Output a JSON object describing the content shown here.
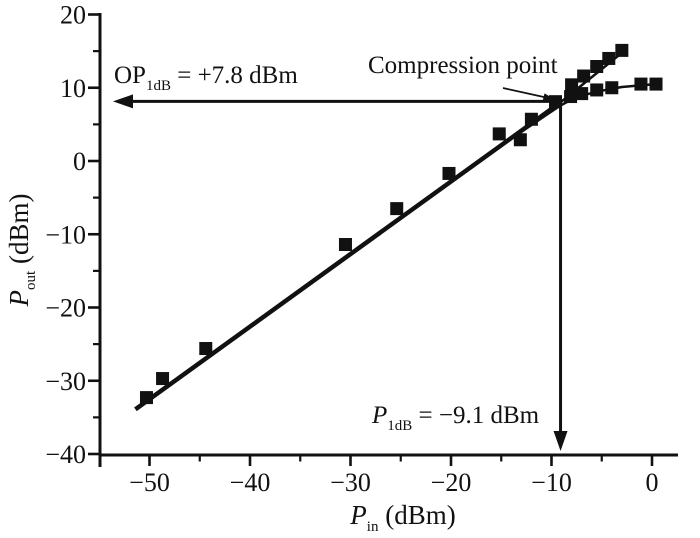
{
  "figure": {
    "background": "#ffffff",
    "ink": "#111111"
  },
  "chart_data": {
    "type": "scatter",
    "title": "",
    "xlabel": "P_in (dBm)",
    "ylabel": "P_out (dBm)",
    "xlabel_parts": {
      "prefix": "P",
      "sub": "in",
      "rest": " (dBm)"
    },
    "ylabel_parts": {
      "prefix": "P",
      "sub": "out",
      "rest": " (dBm)"
    },
    "xlim": [
      -55,
      2.6
    ],
    "ylim": [
      -40,
      20
    ],
    "x_major_ticks": [
      -50,
      -40,
      -30,
      -20,
      -10,
      0
    ],
    "x_minor_ticks": [
      -45,
      -35,
      -25,
      -15,
      -5
    ],
    "y_major_ticks": [
      20,
      10,
      0,
      -10,
      -20,
      -30,
      -40
    ],
    "y_minor_ticks": [
      15,
      5,
      -5,
      -15,
      -25,
      -35
    ],
    "grid": false,
    "legend": "none",
    "series": [
      {
        "name": "measured-output",
        "marker": "square",
        "marker_size": 13,
        "points": [
          [
            -50.3,
            -32.3
          ],
          [
            -48.7,
            -29.7
          ],
          [
            -44.4,
            -25.6
          ],
          [
            -30.5,
            -11.4
          ],
          [
            -25.4,
            -6.5
          ],
          [
            -20.2,
            -1.7
          ],
          [
            -15.2,
            3.7
          ],
          [
            -13.1,
            2.9
          ],
          [
            -12.0,
            5.7
          ],
          [
            -9.6,
            8.1
          ],
          [
            -8.1,
            8.8
          ],
          [
            -7.0,
            9.2
          ],
          [
            -5.5,
            9.7
          ],
          [
            -4.0,
            10.0
          ],
          [
            -1.1,
            10.5
          ],
          [
            0.4,
            10.5
          ]
        ]
      },
      {
        "name": "linear-response",
        "marker": "square",
        "marker_size": 13,
        "points": [
          [
            -8.0,
            10.4
          ],
          [
            -6.8,
            11.6
          ],
          [
            -5.5,
            12.9
          ],
          [
            -4.3,
            14.0
          ],
          [
            -3.0,
            15.1
          ]
        ]
      }
    ],
    "lines": [
      {
        "name": "gain-line-main",
        "width": 4.5,
        "points": [
          [
            -51.4,
            -33.9
          ],
          [
            -9.2,
            7.9
          ]
        ]
      },
      {
        "name": "gain-line-extension",
        "width": 2.5,
        "points": [
          [
            -9.2,
            7.9
          ],
          [
            -2.6,
            15.2
          ]
        ]
      },
      {
        "name": "compressed-curve",
        "width": 2.5,
        "points": [
          [
            -16.5,
            0.7
          ],
          [
            -14,
            3.1
          ],
          [
            -12,
            4.9
          ],
          [
            -10.5,
            6.3
          ],
          [
            -9.2,
            7.5
          ],
          [
            -8,
            8.4
          ],
          [
            -6.5,
            9.1
          ],
          [
            -5,
            9.6
          ],
          [
            -3,
            10.1
          ],
          [
            -0.5,
            10.4
          ],
          [
            0.9,
            10.6
          ]
        ]
      }
    ],
    "annotations": {
      "op1db": {
        "prefix": "OP",
        "sub": "1dB",
        "rest": " = +7.8 dBm",
        "value": 7.8
      },
      "p1db": {
        "prefix": "P",
        "sub": "1dB",
        "rest": " = −9.1 dBm",
        "value": -9.1
      },
      "pointer_label": "Compression point",
      "compression_point": [
        -9.2,
        8.0
      ]
    }
  }
}
